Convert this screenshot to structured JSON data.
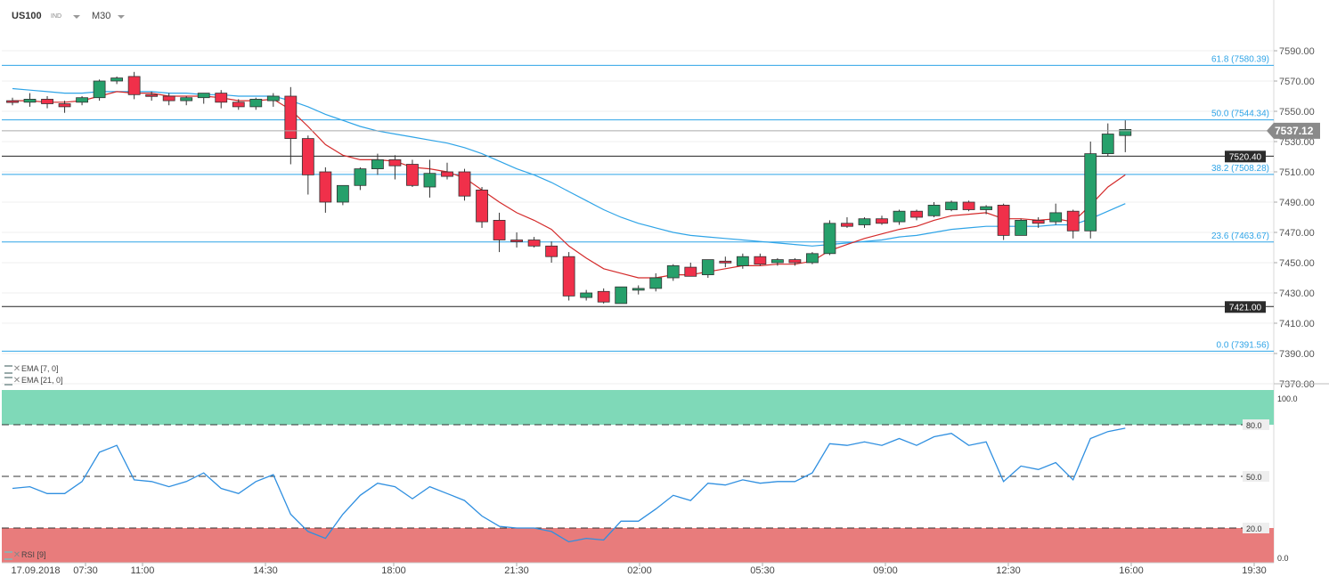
{
  "header": {
    "symbol": "US100",
    "type": "IND",
    "timeframe": "M30"
  },
  "indicators": [
    {
      "name": "EMA",
      "params": "[7, 0]"
    },
    {
      "name": "EMA",
      "params": "[21, 0]"
    }
  ],
  "rsi_label": "RSI [9]",
  "colors": {
    "bull": "#26a06b",
    "bear": "#f0304a",
    "ema7": "#d42a2a",
    "ema21": "#2fa4e7",
    "fib": "#2fa4e7",
    "rsi_line": "#2f8fe0",
    "rsi_over": "#7fd9b8",
    "rsi_under": "#e87c7c"
  },
  "chart_data": {
    "type": "candlestick",
    "symbol": "US100",
    "timeframe": "M30",
    "price_axis": {
      "min": 7370,
      "max": 7600,
      "ticks": [
        7590,
        7570,
        7550,
        7530,
        7510,
        7490,
        7470,
        7450,
        7430,
        7410,
        7390,
        7370
      ]
    },
    "time_axis": [
      "17.09.2018",
      "07:30",
      "11:00",
      "14:30",
      "18:00",
      "21:30",
      "02:00",
      "05:30",
      "09:00",
      "12:30",
      "16:00",
      "19:30"
    ],
    "current_price": "7537.12",
    "fibonacci": [
      {
        "level": "61.8",
        "price": 7580.39,
        "label": "61.8 (7580.39)"
      },
      {
        "level": "50.0",
        "price": 7544.34,
        "label": "50.0 (7544.34)"
      },
      {
        "level": "38.2",
        "price": 7508.28,
        "label": "38.2 (7508.28)"
      },
      {
        "level": "23.6",
        "price": 7463.67,
        "label": "23.6 (7463.67)"
      },
      {
        "level": "0.0",
        "price": 7391.56,
        "label": "0.0 (7391.56)"
      }
    ],
    "horizontal_lines": [
      {
        "price": 7520.4,
        "label": "7520.40"
      },
      {
        "price": 7421.0,
        "label": "7421.00"
      }
    ],
    "candles": [
      [
        7557,
        7559,
        7554,
        7556
      ],
      [
        7556,
        7562,
        7553,
        7558
      ],
      [
        7558,
        7560,
        7552,
        7555
      ],
      [
        7555,
        7557,
        7549,
        7553
      ],
      [
        7556,
        7560,
        7554,
        7559
      ],
      [
        7559,
        7571,
        7557,
        7570
      ],
      [
        7570,
        7573,
        7568,
        7572
      ],
      [
        7573,
        7576,
        7558,
        7561
      ],
      [
        7561,
        7563,
        7557,
        7560
      ],
      [
        7560,
        7562,
        7554,
        7557
      ],
      [
        7557,
        7560,
        7554,
        7559
      ],
      [
        7559,
        7562,
        7555,
        7562
      ],
      [
        7562,
        7564,
        7552,
        7556
      ],
      [
        7556,
        7558,
        7551,
        7553
      ],
      [
        7553,
        7559,
        7551,
        7558
      ],
      [
        7557,
        7562,
        7553,
        7560
      ],
      [
        7560,
        7566,
        7515,
        7532
      ],
      [
        7532,
        7534,
        7495,
        7508
      ],
      [
        7510,
        7513,
        7483,
        7490
      ],
      [
        7490,
        7501,
        7488,
        7501
      ],
      [
        7501,
        7513,
        7498,
        7512
      ],
      [
        7512,
        7522,
        7508,
        7518
      ],
      [
        7518,
        7521,
        7505,
        7514
      ],
      [
        7515,
        7518,
        7500,
        7501
      ],
      [
        7500,
        7518,
        7493,
        7509
      ],
      [
        7510,
        7516,
        7505,
        7507
      ],
      [
        7510,
        7512,
        7491,
        7494
      ],
      [
        7498,
        7500,
        7473,
        7477
      ],
      [
        7478,
        7483,
        7457,
        7465
      ],
      [
        7465,
        7470,
        7460,
        7464
      ],
      [
        7465,
        7467,
        7460,
        7461
      ],
      [
        7461,
        7464,
        7450,
        7454
      ],
      [
        7454,
        7457,
        7425,
        7428
      ],
      [
        7427,
        7432,
        7425,
        7430
      ],
      [
        7431,
        7433,
        7423,
        7424
      ],
      [
        7423,
        7434,
        7423,
        7434
      ],
      [
        7432,
        7435,
        7429,
        7433
      ],
      [
        7433,
        7443,
        7431,
        7440
      ],
      [
        7440,
        7449,
        7438,
        7448
      ],
      [
        7447,
        7450,
        7441,
        7441
      ],
      [
        7442,
        7452,
        7440,
        7452
      ],
      [
        7451,
        7454,
        7447,
        7450
      ],
      [
        7448,
        7456,
        7446,
        7454
      ],
      [
        7454,
        7456,
        7448,
        7449
      ],
      [
        7450,
        7453,
        7448,
        7452
      ],
      [
        7452,
        7453,
        7448,
        7450
      ],
      [
        7450,
        7457,
        7449,
        7456
      ],
      [
        7456,
        7478,
        7455,
        7476
      ],
      [
        7476,
        7480,
        7473,
        7474
      ],
      [
        7475,
        7480,
        7473,
        7479
      ],
      [
        7479,
        7481,
        7475,
        7476
      ],
      [
        7477,
        7485,
        7475,
        7484
      ],
      [
        7484,
        7485,
        7478,
        7480
      ],
      [
        7481,
        7490,
        7480,
        7488
      ],
      [
        7485,
        7491,
        7484,
        7490
      ],
      [
        7490,
        7491,
        7484,
        7485
      ],
      [
        7485,
        7488,
        7482,
        7487
      ],
      [
        7488,
        7489,
        7465,
        7468
      ],
      [
        7468,
        7479,
        7468,
        7478
      ],
      [
        7478,
        7480,
        7473,
        7476
      ],
      [
        7477,
        7489,
        7475,
        7483
      ],
      [
        7484,
        7485,
        7466,
        7471
      ],
      [
        7471,
        7530,
        7466,
        7522
      ],
      [
        7522,
        7542,
        7520,
        7535
      ],
      [
        7534,
        7544,
        7523,
        7538
      ]
    ],
    "ema7": [
      7557,
      7557,
      7556,
      7556,
      7557,
      7560,
      7563,
      7562,
      7562,
      7560,
      7560,
      7560,
      7559,
      7557,
      7557,
      7558,
      7551,
      7540,
      7528,
      7521,
      7518,
      7518,
      7517,
      7513,
      7512,
      7510,
      7506,
      7498,
      7490,
      7483,
      7478,
      7472,
      7461,
      7453,
      7446,
      7443,
      7440,
      7440,
      7442,
      7442,
      7444,
      7446,
      7448,
      7448,
      7449,
      7449,
      7451,
      7458,
      7462,
      7466,
      7469,
      7472,
      7474,
      7478,
      7481,
      7482,
      7483,
      7479,
      7479,
      7478,
      7479,
      7477,
      7488,
      7500,
      7508
    ],
    "ema21": [
      7565,
      7564,
      7563,
      7562,
      7562,
      7563,
      7563,
      7563,
      7563,
      7562,
      7562,
      7561,
      7561,
      7560,
      7560,
      7560,
      7557,
      7553,
      7548,
      7544,
      7540,
      7537,
      7535,
      7533,
      7531,
      7529,
      7526,
      7522,
      7517,
      7512,
      7508,
      7503,
      7497,
      7491,
      7485,
      7480,
      7476,
      7473,
      7470,
      7468,
      7467,
      7466,
      7465,
      7464,
      7463,
      7462,
      7461,
      7462,
      7463,
      7464,
      7465,
      7467,
      7468,
      7470,
      7472,
      7473,
      7474,
      7474,
      7474,
      7474,
      7475,
      7475,
      7479,
      7484,
      7489
    ],
    "rsi": {
      "levels": [
        100.0,
        80.0,
        50.0,
        20.0,
        0.0
      ],
      "values": [
        43,
        44,
        40,
        40,
        47,
        64,
        68,
        48,
        47,
        44,
        47,
        52,
        43,
        40,
        47,
        51,
        28,
        18,
        14,
        28,
        39,
        46,
        44,
        37,
        44,
        40,
        36,
        27,
        21,
        20,
        20,
        18,
        12,
        14,
        13,
        24,
        24,
        31,
        39,
        36,
        46,
        45,
        48,
        46,
        47,
        47,
        52,
        69,
        68,
        70,
        68,
        72,
        68,
        73,
        75,
        68,
        70,
        47,
        56,
        54,
        58,
        48,
        72,
        76,
        78
      ]
    }
  }
}
